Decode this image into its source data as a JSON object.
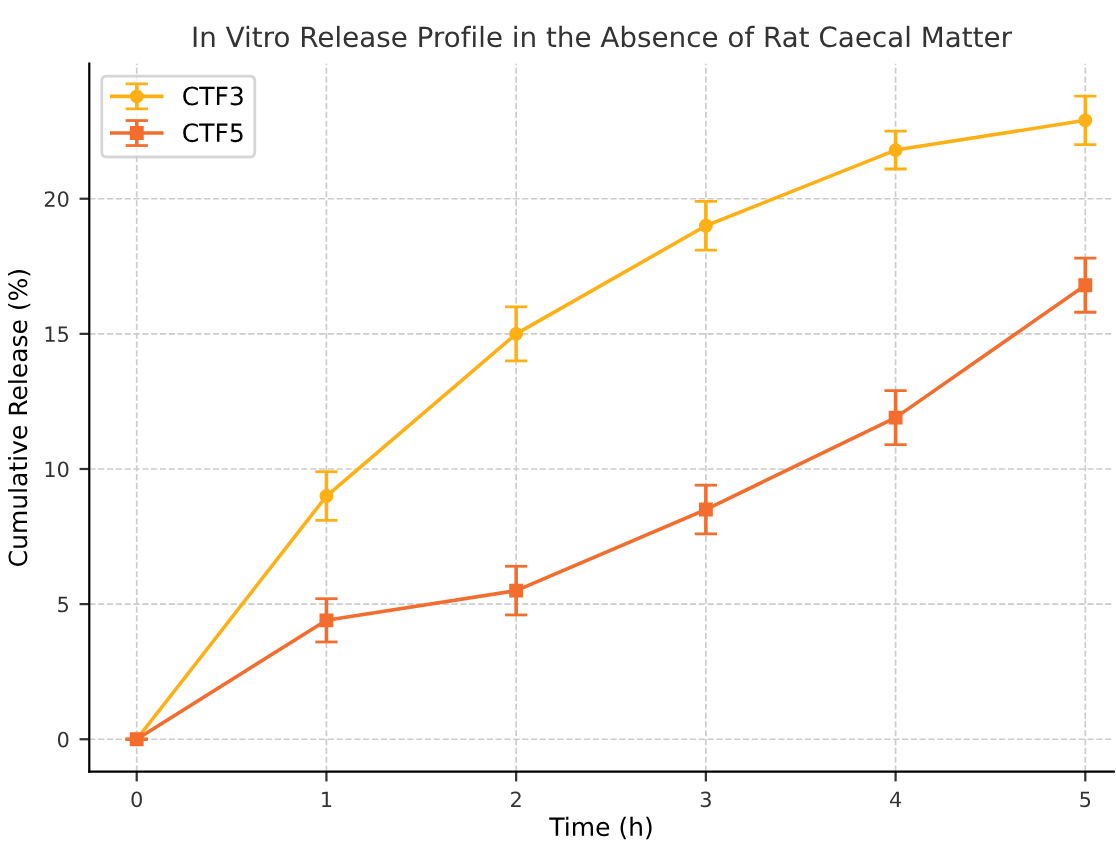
{
  "chart_data": {
    "type": "line",
    "title": "In Vitro Release Profile in the Absence of Rat Caecal Matter",
    "xlabel": "Time (h)",
    "ylabel": "Cumulative Release (%)",
    "x": [
      0,
      1,
      2,
      3,
      4,
      5
    ],
    "series": [
      {
        "name": "CTF3",
        "color": "#ffb014",
        "values": [
          0,
          9.0,
          15.0,
          19.0,
          21.8,
          22.9
        ],
        "errors": [
          0,
          0.9,
          1.0,
          0.9,
          0.7,
          0.9
        ],
        "marker": "circle"
      },
      {
        "name": "CTF5",
        "color": "#f36d2f",
        "values": [
          0,
          4.4,
          5.5,
          8.5,
          11.9,
          16.8
        ],
        "errors": [
          0,
          0.8,
          0.9,
          0.9,
          1.0,
          1.0
        ],
        "marker": "square"
      }
    ],
    "xlim": [
      -0.25,
      5.15
    ],
    "ylim": [
      -1.2,
      25.0
    ],
    "xticks": [
      0,
      1,
      2,
      3,
      4,
      5
    ],
    "yticks": [
      0,
      5,
      10,
      15,
      20
    ],
    "grid": true,
    "legend": "top left",
    "line_style": "solid"
  }
}
